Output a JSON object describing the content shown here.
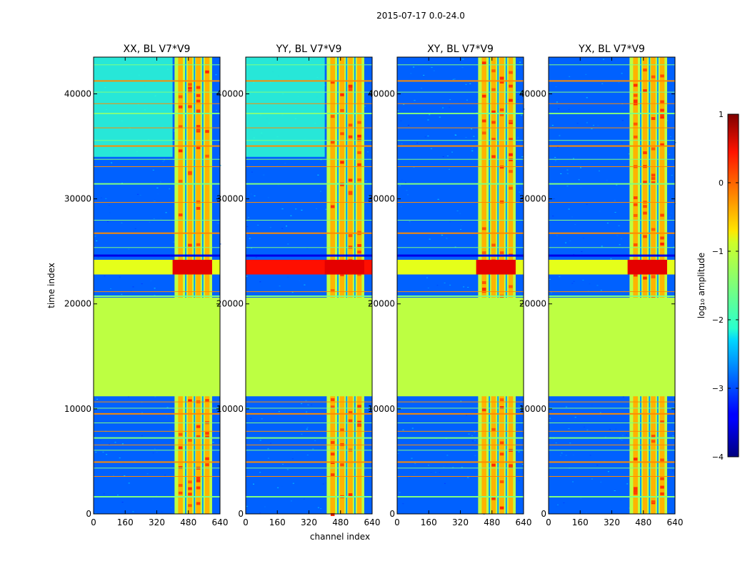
{
  "chart_data": {
    "type": "heatmap",
    "suptitle": "2015-07-17 0.0-24.0",
    "xlabel": "channel index",
    "ylabel": "time index",
    "xlim": [
      0,
      640
    ],
    "ylim": [
      0,
      43500
    ],
    "x_ticks": [
      0,
      160,
      320,
      480,
      640
    ],
    "x_tick_labels": [
      "0",
      "160",
      "320",
      "480",
      "640"
    ],
    "y_ticks": [
      0,
      10000,
      20000,
      30000,
      40000
    ],
    "y_tick_labels": [
      "0",
      "10000",
      "20000",
      "30000",
      "40000"
    ],
    "colorbar": {
      "label": "log₁₀ amplitude",
      "range": [
        -4,
        1
      ],
      "ticks": [
        1,
        0,
        -1,
        -2,
        -3,
        -4
      ],
      "tick_labels": [
        "1",
        "0",
        "−1",
        "−2",
        "−3",
        "−4"
      ],
      "colormap": "jet"
    },
    "panels": [
      {
        "title": "XX, BL V7*V9",
        "polarization": "XX",
        "baseline": "V7*V9"
      },
      {
        "title": "YY, BL V7*V9",
        "polarization": "YY",
        "baseline": "V7*V9"
      },
      {
        "title": "XY, BL V7*V9",
        "polarization": "XY",
        "baseline": "V7*V9"
      },
      {
        "title": "YX, BL V7*V9",
        "polarization": "YX",
        "baseline": "V7*V9"
      }
    ],
    "flagged_block": {
      "time_range": [
        11200,
        20600
      ],
      "value": -1.2
    },
    "bright_channel_band": {
      "channel_range": [
        410,
        600
      ],
      "value_range": [
        -1,
        0.3
      ]
    },
    "strong_rfi_time_range": [
      22800,
      24200
    ]
  },
  "colors": {
    "jet_low": "#00007f",
    "jet_mid": "#7fff7f",
    "jet_high": "#7f0000",
    "flagged": "#9cff5a",
    "background_noise": "#1a5cff"
  }
}
